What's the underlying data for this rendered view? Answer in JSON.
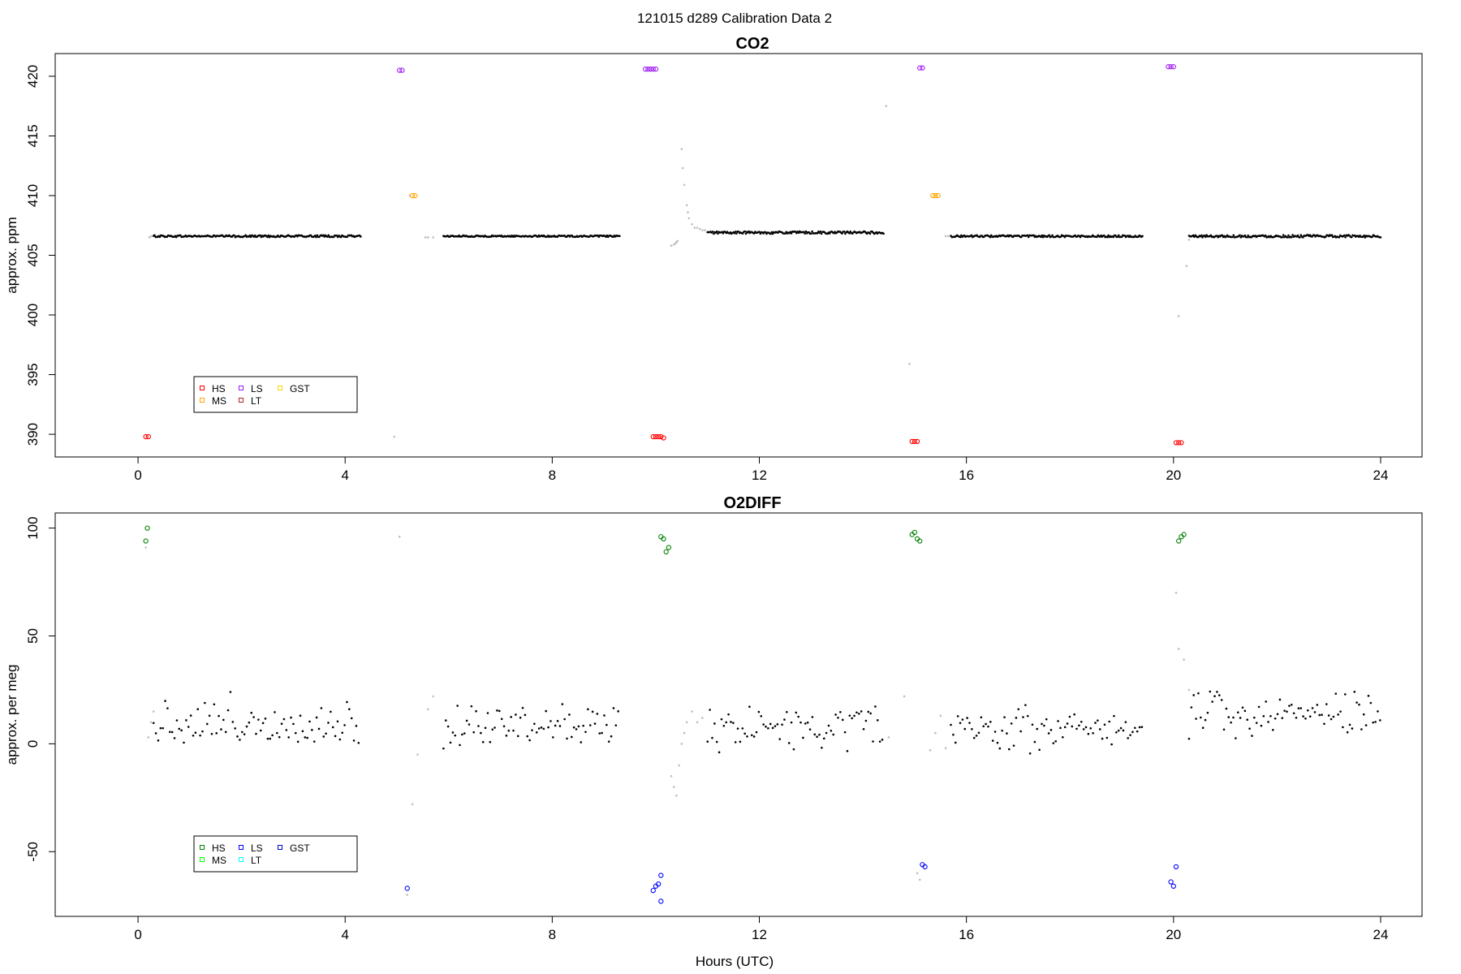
{
  "figure": {
    "suptitle": "121015   d289   Calibration Data 2",
    "xlabel": "Hours (UTC)"
  },
  "chart_data": [
    {
      "type": "scatter",
      "title": "CO2",
      "xlabel": "",
      "ylabel": "approx. ppm",
      "xlim": [
        -1.6,
        24.8
      ],
      "ylim": [
        388.1,
        421.9
      ],
      "xticks": [
        0,
        4,
        8,
        12,
        16,
        20,
        24
      ],
      "xtick_labels": [
        "0",
        "4",
        "8",
        "12",
        "16",
        "20",
        "24"
      ],
      "yticks": [
        390,
        395,
        400,
        405,
        410,
        415,
        420
      ],
      "ytick_labels": [
        "390",
        "395",
        "400",
        "405",
        "410",
        "415",
        "420"
      ],
      "grid": false,
      "legend": {
        "placement": "bottom-left",
        "entries": [
          {
            "label": "HS",
            "color": "#ff0000"
          },
          {
            "label": "MS",
            "color": "#ffa500"
          },
          {
            "label": "LS",
            "color": "#a020f0"
          },
          {
            "label": "LT",
            "color": "#b22222"
          },
          {
            "label": "GST",
            "color": "#ffd700"
          }
        ]
      },
      "series": [
        {
          "name": "",
          "color": "#000000",
          "marker": "dot",
          "segments": [
            {
              "x0": 0.3,
              "x1": 4.3,
              "y": 406.6,
              "jitter": 0.08
            },
            {
              "x0": 5.9,
              "x1": 9.3,
              "y": 406.6,
              "jitter": 0.06
            },
            {
              "x0": 11.0,
              "x1": 14.4,
              "y": 406.9,
              "jitter": 0.1
            },
            {
              "x0": 15.7,
              "x1": 19.4,
              "y": 406.6,
              "jitter": 0.08
            },
            {
              "x0": 20.3,
              "x1": 24.0,
              "y": 406.6,
              "jitter": 0.1
            }
          ]
        },
        {
          "name": "",
          "color": "#bebebe",
          "marker": "dot",
          "points": [
            [
              0.22,
              406.5
            ],
            [
              0.25,
              406.6
            ],
            [
              4.95,
              389.8
            ],
            [
              5.25,
              410.0
            ],
            [
              5.55,
              406.5
            ],
            [
              5.6,
              406.5
            ],
            [
              5.7,
              406.5
            ],
            [
              10.5,
              413.9
            ],
            [
              10.52,
              412.3
            ],
            [
              10.55,
              410.9
            ],
            [
              10.6,
              409.2
            ],
            [
              10.62,
              408.6
            ],
            [
              10.64,
              408.1
            ],
            [
              10.7,
              407.6
            ],
            [
              10.75,
              407.3
            ],
            [
              10.8,
              407.3
            ],
            [
              10.85,
              407.2
            ],
            [
              10.9,
              407.1
            ],
            [
              10.95,
              407.1
            ],
            [
              10.3,
              405.8
            ],
            [
              10.35,
              405.9
            ],
            [
              10.38,
              406.0
            ],
            [
              10.4,
              406.1
            ],
            [
              10.42,
              406.2
            ],
            [
              14.45,
              417.5
            ],
            [
              14.9,
              395.9
            ],
            [
              15.6,
              406.6
            ],
            [
              15.65,
              406.6
            ],
            [
              20.1,
              399.9
            ],
            [
              20.25,
              404.1
            ],
            [
              20.3,
              406.3
            ]
          ]
        },
        {
          "name": "HS",
          "color": "#ff0000",
          "marker": "circle",
          "points": [
            [
              0.15,
              389.8
            ],
            [
              0.2,
              389.8
            ],
            [
              9.95,
              389.8
            ],
            [
              10.0,
              389.8
            ],
            [
              10.05,
              389.8
            ],
            [
              10.1,
              389.8
            ],
            [
              10.15,
              389.7
            ],
            [
              14.95,
              389.4
            ],
            [
              15.0,
              389.4
            ],
            [
              15.05,
              389.4
            ],
            [
              20.05,
              389.3
            ],
            [
              20.1,
              389.3
            ],
            [
              20.15,
              389.3
            ]
          ]
        },
        {
          "name": "MS",
          "color": "#ffa500",
          "marker": "circle",
          "points": [
            [
              5.3,
              410.0
            ],
            [
              5.35,
              410.0
            ],
            [
              15.35,
              410.0
            ],
            [
              15.4,
              410.0
            ],
            [
              15.45,
              410.0
            ]
          ]
        },
        {
          "name": "LS",
          "color": "#a020f0",
          "marker": "circle",
          "points": [
            [
              5.05,
              420.5
            ],
            [
              5.1,
              420.5
            ],
            [
              9.8,
              420.6
            ],
            [
              9.85,
              420.6
            ],
            [
              9.9,
              420.6
            ],
            [
              9.95,
              420.6
            ],
            [
              10.0,
              420.6
            ],
            [
              15.1,
              420.7
            ],
            [
              15.15,
              420.7
            ],
            [
              19.9,
              420.8
            ],
            [
              19.95,
              420.8
            ],
            [
              20.0,
              420.8
            ]
          ]
        }
      ]
    },
    {
      "type": "scatter",
      "title": "O2DIFF",
      "xlabel": "Hours (UTC)",
      "ylabel": "approx. per meg",
      "xlim": [
        -1.6,
        24.8
      ],
      "ylim": [
        -80,
        107
      ],
      "xticks": [
        0,
        4,
        8,
        12,
        16,
        20,
        24
      ],
      "xtick_labels": [
        "0",
        "4",
        "8",
        "12",
        "16",
        "20",
        "24"
      ],
      "yticks": [
        -50,
        0,
        50,
        100
      ],
      "ytick_labels": [
        "-50",
        "0",
        "50",
        "100"
      ],
      "grid": false,
      "legend": {
        "placement": "bottom-left",
        "entries": [
          {
            "label": "HS",
            "color": "#008000"
          },
          {
            "label": "MS",
            "color": "#00ff00"
          },
          {
            "label": "LS",
            "color": "#0000ff"
          },
          {
            "label": "LT",
            "color": "#00ffff"
          },
          {
            "label": "GST",
            "color": "#0000cd"
          }
        ]
      },
      "series": [
        {
          "name": "",
          "color": "#000000",
          "marker": "dot",
          "segments": [
            {
              "x0": 0.3,
              "x1": 4.3,
              "y": 10,
              "jitter": 9
            },
            {
              "x0": 5.9,
              "x1": 9.3,
              "y": 9,
              "jitter": 7
            },
            {
              "x0": 11.0,
              "x1": 14.4,
              "y": 7,
              "jitter": 8
            },
            {
              "x0": 15.7,
              "x1": 19.4,
              "y": 8,
              "jitter": 8
            },
            {
              "x0": 20.3,
              "x1": 24.0,
              "y": 14,
              "jitter": 8
            }
          ]
        },
        {
          "name": "",
          "color": "#bebebe",
          "marker": "dot",
          "points": [
            [
              0.15,
              91
            ],
            [
              0.2,
              3
            ],
            [
              0.25,
              10
            ],
            [
              0.3,
              15
            ],
            [
              5.05,
              96
            ],
            [
              5.2,
              -70
            ],
            [
              5.3,
              -28
            ],
            [
              5.4,
              -5
            ],
            [
              5.6,
              16
            ],
            [
              5.7,
              22
            ],
            [
              10.3,
              -15
            ],
            [
              10.35,
              -20
            ],
            [
              10.4,
              -24
            ],
            [
              10.45,
              -10
            ],
            [
              10.5,
              0
            ],
            [
              10.55,
              5
            ],
            [
              10.6,
              10
            ],
            [
              10.7,
              15
            ],
            [
              10.8,
              10
            ],
            [
              10.9,
              12
            ],
            [
              14.5,
              3
            ],
            [
              14.8,
              22
            ],
            [
              15.05,
              -60
            ],
            [
              15.1,
              -63
            ],
            [
              15.3,
              -3
            ],
            [
              15.4,
              5
            ],
            [
              15.5,
              13
            ],
            [
              15.6,
              -2
            ],
            [
              20.05,
              70
            ],
            [
              20.1,
              44
            ],
            [
              20.2,
              39
            ],
            [
              20.3,
              25
            ]
          ]
        },
        {
          "name": "HS",
          "color": "#008000",
          "marker": "circle",
          "points": [
            [
              0.15,
              94
            ],
            [
              0.18,
              100
            ],
            [
              10.1,
              96
            ],
            [
              10.15,
              95
            ],
            [
              10.2,
              89
            ],
            [
              10.25,
              91
            ],
            [
              14.95,
              97
            ],
            [
              15.0,
              98
            ],
            [
              15.05,
              95
            ],
            [
              15.1,
              94
            ],
            [
              20.1,
              94
            ],
            [
              20.15,
              96
            ],
            [
              20.2,
              97
            ]
          ]
        },
        {
          "name": "LS",
          "color": "#0000ff",
          "marker": "circle",
          "points": [
            [
              5.2,
              -67
            ],
            [
              9.95,
              -68
            ],
            [
              10.0,
              -66
            ],
            [
              10.05,
              -65
            ],
            [
              10.1,
              -73
            ],
            [
              10.1,
              -61
            ],
            [
              15.15,
              -56
            ],
            [
              15.2,
              -57
            ],
            [
              19.95,
              -64
            ],
            [
              20.0,
              -66
            ],
            [
              20.05,
              -57
            ]
          ]
        }
      ]
    }
  ]
}
